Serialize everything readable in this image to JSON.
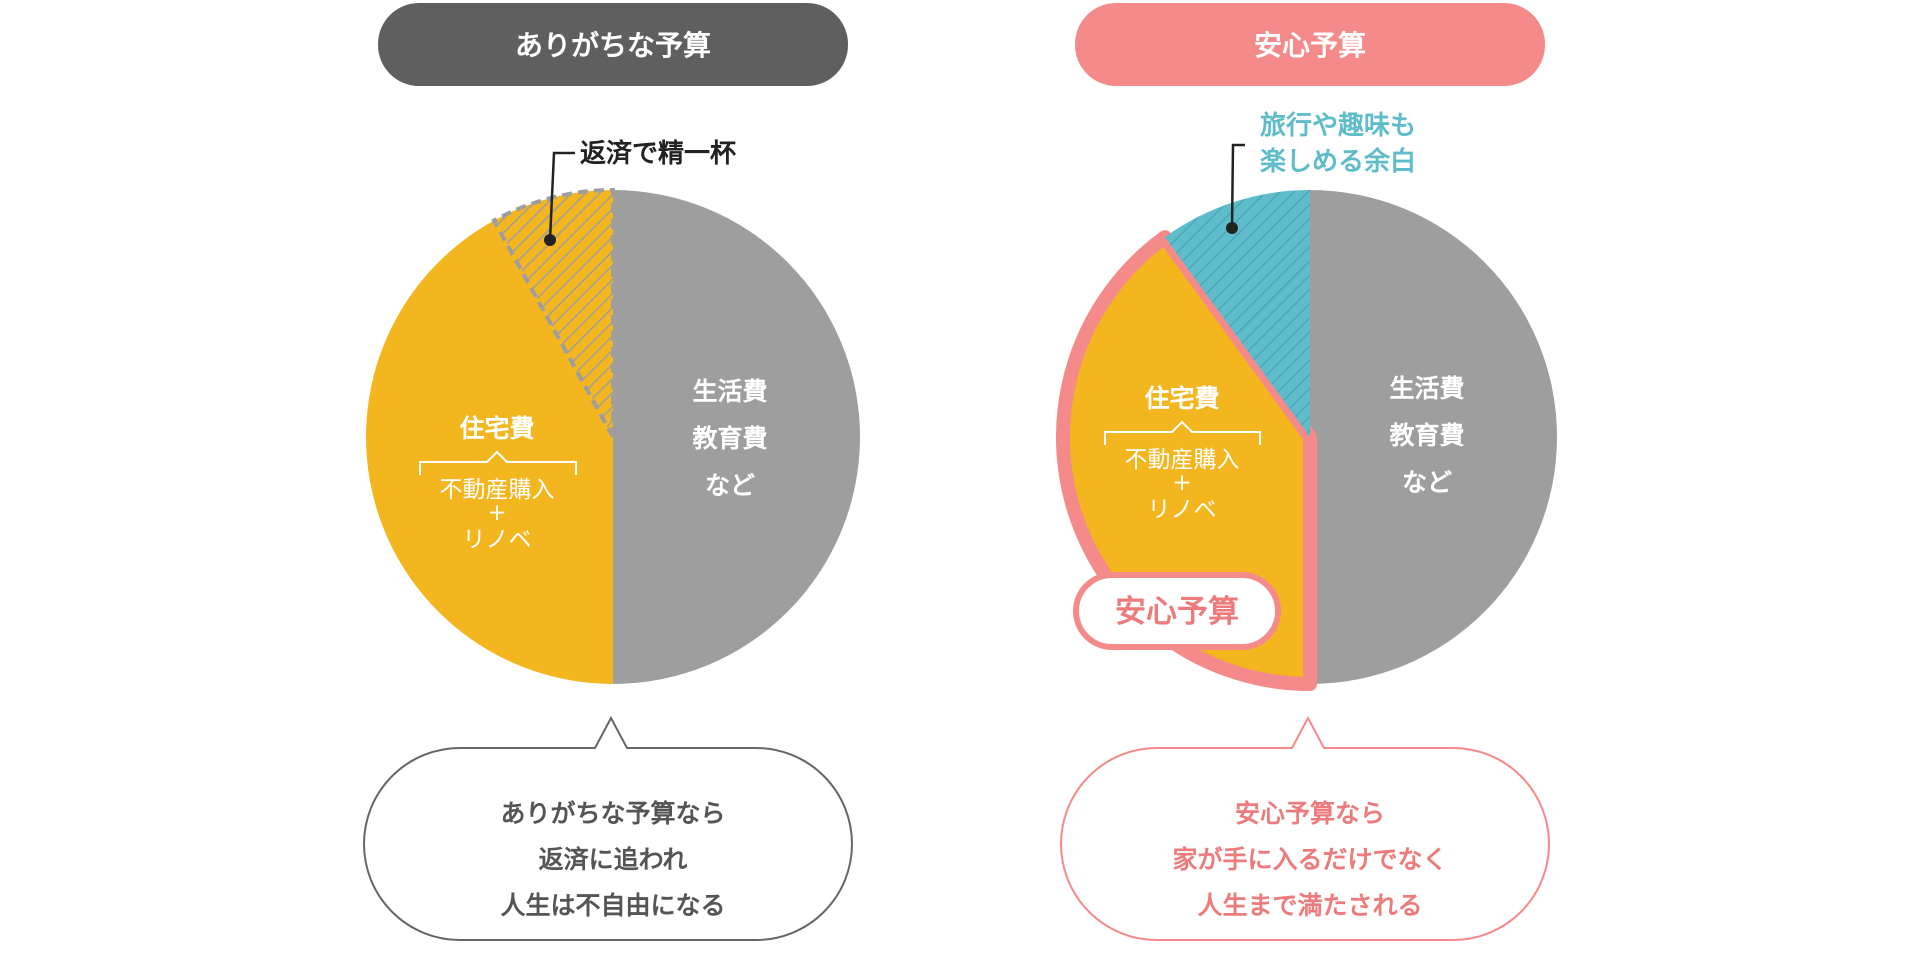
{
  "colors": {
    "gray_pill": "#5f5f5f",
    "pink": "#f48a89",
    "pink_text": "#ee7b7c",
    "yellow": "#f3b61f",
    "gray_slice": "#9e9e9e",
    "teal": "#5fbcca",
    "hatch_dark": "#9e9e9e",
    "white": "#ffffff",
    "dark_text": "#333333",
    "bubble_text": "#555555"
  },
  "chart_data": [
    {
      "type": "pie",
      "title": "ありがちな予算",
      "slices": [
        {
          "label": "生活費\n教育費\nなど",
          "value": 50,
          "color": "#9e9e9e"
        },
        {
          "label": "住宅費 (不動産購入+リノベ)",
          "value": 42,
          "color": "#f3b61f"
        },
        {
          "label": "返済で精一杯",
          "value": 8,
          "color": "#f3b61f",
          "pattern": "hatch"
        }
      ],
      "annotation": "返済で精一杯",
      "bubble": "ありがちな予算なら\n返済に追われ\n人生は不自由になる"
    },
    {
      "type": "pie",
      "title": "安心予算",
      "slices": [
        {
          "label": "生活費\n教育費\nなど",
          "value": 50,
          "color": "#9e9e9e"
        },
        {
          "label": "住宅費 (不動産購入+リノベ)",
          "value": 40,
          "color": "#f3b61f",
          "outline": "#f48a89"
        },
        {
          "label": "旅行や趣味も楽しめる余白",
          "value": 10,
          "color": "#5fbcca",
          "pattern": "hatch"
        }
      ],
      "annotation": "旅行や趣味も\n楽しめる余白",
      "badge": "安心予算",
      "bubble": "安心予算なら\n家が手に入るだけでなく\n人生まで満たされる"
    }
  ],
  "left": {
    "title": "ありがちな予算",
    "annotation": "返済で精一杯",
    "living_lines": [
      "生活費",
      "教育費",
      "など"
    ],
    "housing_title": "住宅費",
    "housing_lines": [
      "不動産購入",
      "+",
      "リノベ"
    ],
    "bubble_lines": [
      "ありがちな予算なら",
      "返済に追われ",
      "人生は不自由になる"
    ]
  },
  "right": {
    "title": "安心予算",
    "annotation_lines": [
      "旅行や趣味も",
      "楽しめる余白"
    ],
    "living_lines": [
      "生活費",
      "教育費",
      "など"
    ],
    "housing_title": "住宅費",
    "housing_lines": [
      "不動産購入",
      "+",
      "リノベ"
    ],
    "badge": "安心予算",
    "bubble_lines": [
      "安心予算なら",
      "家が手に入るだけでなく",
      "人生まで満たされる"
    ]
  }
}
